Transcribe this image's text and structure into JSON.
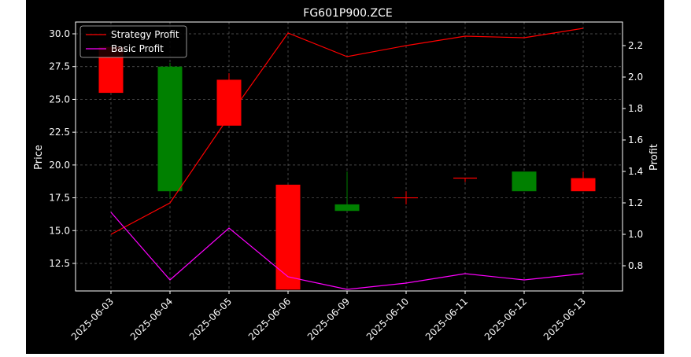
{
  "chart_data": {
    "type": "candlestick",
    "title": "FG601P900.ZCE",
    "xlabel": "",
    "ylabel_left": "Price",
    "ylabel_right": "Profit",
    "categories": [
      "2025-06-03",
      "2025-06-04",
      "2025-06-05",
      "2025-06-06",
      "2025-06-09",
      "2025-06-10",
      "2025-06-11",
      "2025-06-12",
      "2025-06-13"
    ],
    "ylim_left": [
      10.4,
      30.9
    ],
    "ylim_right": [
      0.64,
      2.35
    ],
    "yticks_left": [
      "12.5",
      "15.0",
      "17.5",
      "20.0",
      "22.5",
      "25.0",
      "27.5",
      "30.0"
    ],
    "yticks_right": [
      "0.8",
      "1.0",
      "1.2",
      "1.4",
      "1.6",
      "1.8",
      "2.0",
      "2.2"
    ],
    "grid": true,
    "legend_position": "top-left",
    "candles": [
      {
        "date": "2025-06-03",
        "open": 25.5,
        "close": 29.0,
        "high": 29.0,
        "low": 25.5,
        "color": "#ff0000"
      },
      {
        "date": "2025-06-04",
        "open": 27.5,
        "close": 18.0,
        "high": 27.8,
        "low": 17.5,
        "color": "#008000"
      },
      {
        "date": "2025-06-05",
        "open": 23.0,
        "close": 26.5,
        "high": 27.0,
        "low": 23.0,
        "color": "#ff0000"
      },
      {
        "date": "2025-06-06",
        "open": 10.5,
        "close": 18.5,
        "high": 18.5,
        "low": 10.5,
        "color": "#ff0000"
      },
      {
        "date": "2025-06-09",
        "open": 17.0,
        "close": 16.5,
        "high": 19.5,
        "low": 16.5,
        "color": "#008000"
      },
      {
        "date": "2025-06-10",
        "open": 17.5,
        "close": 17.5,
        "high": 18.0,
        "low": 17.0,
        "color": "#ff0000"
      },
      {
        "date": "2025-06-11",
        "open": 19.0,
        "close": 19.0,
        "high": 19.0,
        "low": 18.7,
        "color": "#ff0000"
      },
      {
        "date": "2025-06-12",
        "open": 19.5,
        "close": 18.0,
        "high": 19.5,
        "low": 18.0,
        "color": "#008000"
      },
      {
        "date": "2025-06-13",
        "open": 18.0,
        "close": 19.0,
        "high": 19.5,
        "low": 18.0,
        "color": "#ff0000"
      }
    ],
    "series": [
      {
        "name": "Strategy Profit",
        "color": "#ff0000",
        "values": [
          1.0,
          1.2,
          1.75,
          2.28,
          2.13,
          2.2,
          2.26,
          2.25,
          2.31
        ]
      },
      {
        "name": "Basic Profit",
        "color": "#ff00ff",
        "values": [
          1.14,
          0.71,
          1.04,
          0.73,
          0.65,
          0.69,
          0.75,
          0.71,
          0.75
        ]
      }
    ]
  }
}
